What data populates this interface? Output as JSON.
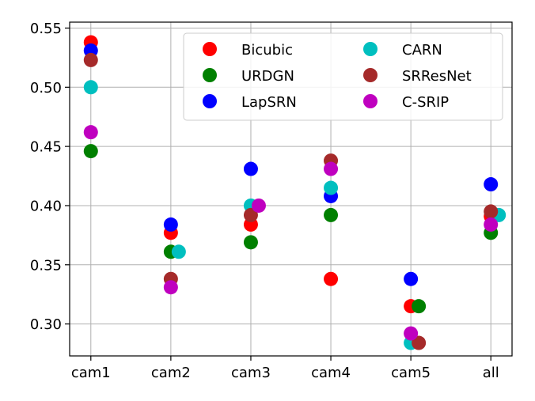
{
  "chart_data": {
    "type": "scatter",
    "categories": [
      "cam1",
      "cam2",
      "cam3",
      "cam4",
      "cam5",
      "all"
    ],
    "ylim": [
      0.273,
      0.555
    ],
    "yticks": [
      0.3,
      0.35,
      0.4,
      0.45,
      0.5,
      0.55
    ],
    "ytick_labels": [
      "0.30",
      "0.35",
      "0.40",
      "0.45",
      "0.50",
      "0.55"
    ],
    "grid": true,
    "legend_position": "top-right",
    "legend_columns": 2,
    "series": [
      {
        "name": "Bicubic",
        "color": "#ff0000",
        "values": [
          0.538,
          0.377,
          0.384,
          0.338,
          0.315,
          0.391
        ]
      },
      {
        "name": "URDGN",
        "color": "#008000",
        "values": [
          0.446,
          0.361,
          0.369,
          0.392,
          0.315,
          0.377
        ]
      },
      {
        "name": "LapSRN",
        "color": "#0000ff",
        "values": [
          0.531,
          0.384,
          0.431,
          0.408,
          0.338,
          0.418
        ]
      },
      {
        "name": "CARN",
        "color": "#00bfbf",
        "values": [
          0.5,
          0.361,
          0.4,
          0.415,
          0.284,
          0.392
        ]
      },
      {
        "name": "SRResNet",
        "color": "#a52a2a",
        "values": [
          0.523,
          0.338,
          0.392,
          0.438,
          0.284,
          0.395
        ]
      },
      {
        "name": "C-SRIP",
        "color": "#bf00bf",
        "values": [
          0.462,
          0.331,
          0.4,
          0.431,
          0.292,
          0.384
        ]
      }
    ]
  }
}
